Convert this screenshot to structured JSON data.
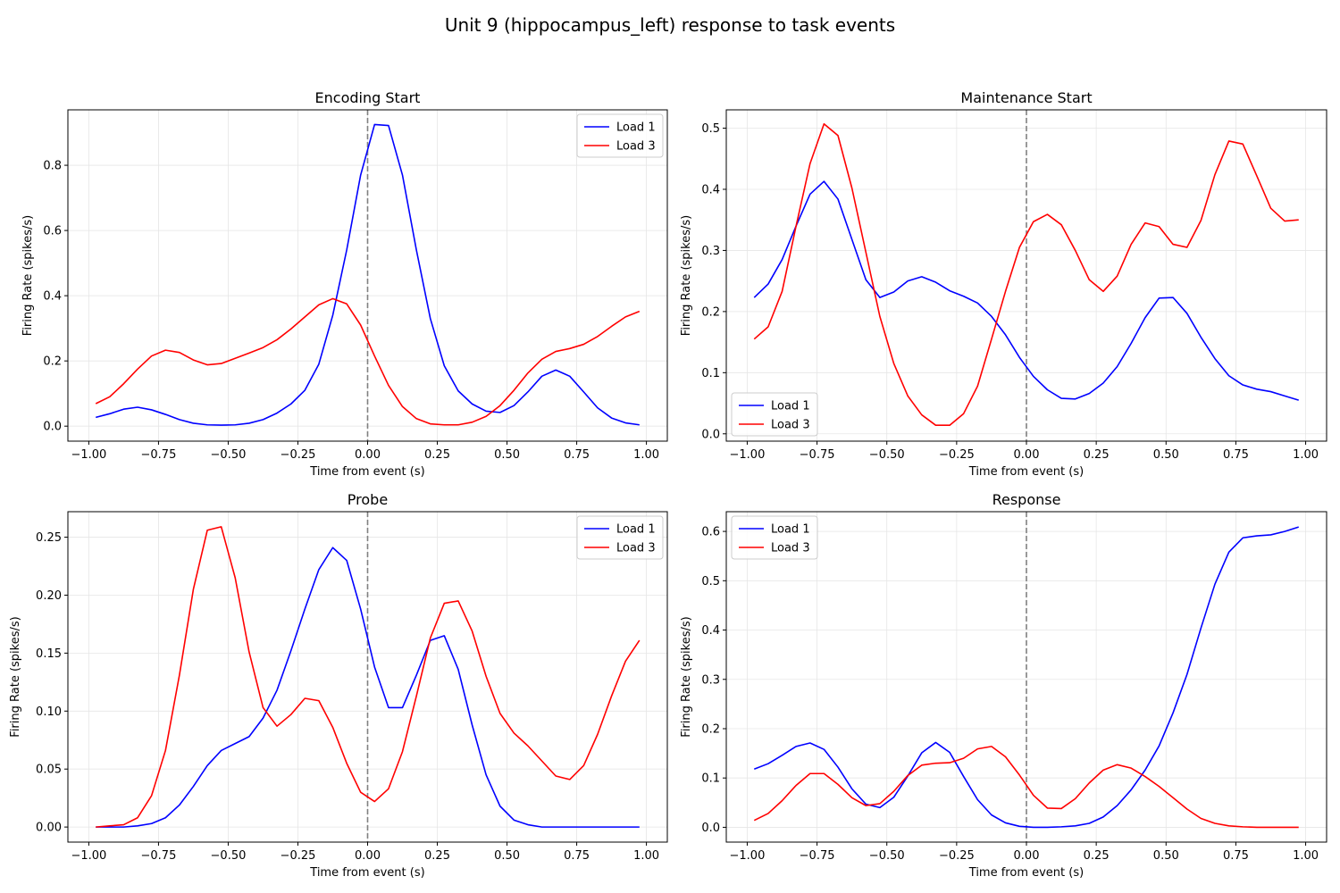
{
  "figure": {
    "title": "Unit 9 (hippocampus_left) response to task events"
  },
  "colors": {
    "load1": "#0000ff",
    "load3": "#ff0000",
    "event_line": "#808080",
    "grid": "#e6e6e6"
  },
  "chart_data": [
    {
      "type": "line",
      "title": "Encoding Start",
      "xlabel": "Time from event (s)",
      "ylabel": "Firing Rate (spikes/s)",
      "xlim": [
        -1.075,
        1.075
      ],
      "ylim": [
        -0.046,
        0.97
      ],
      "xticks": [
        -1.0,
        -0.75,
        -0.5,
        -0.25,
        0.0,
        0.25,
        0.5,
        0.75,
        1.0
      ],
      "xticklabels": [
        "−1.00",
        "−0.75",
        "−0.50",
        "−0.25",
        "0.00",
        "0.25",
        "0.50",
        "0.75",
        "1.00"
      ],
      "yticks": [
        0.0,
        0.2,
        0.4,
        0.6,
        0.8
      ],
      "yticklabels": [
        "0.0",
        "0.2",
        "0.4",
        "0.6",
        "0.8"
      ],
      "event_line_x": 0.0,
      "grid": true,
      "legend_position": "top-right",
      "x": [
        -0.975,
        -0.925,
        -0.875,
        -0.825,
        -0.775,
        -0.725,
        -0.675,
        -0.625,
        -0.575,
        -0.525,
        -0.475,
        -0.425,
        -0.375,
        -0.325,
        -0.275,
        -0.225,
        -0.175,
        -0.125,
        -0.075,
        -0.025,
        0.025,
        0.075,
        0.125,
        0.175,
        0.225,
        0.275,
        0.325,
        0.375,
        0.425,
        0.475,
        0.525,
        0.575,
        0.625,
        0.675,
        0.725,
        0.775,
        0.825,
        0.875,
        0.925,
        0.975
      ],
      "series": [
        {
          "name": "Load 1",
          "color": "#0000ff",
          "values": [
            0.027,
            0.038,
            0.052,
            0.058,
            0.05,
            0.036,
            0.02,
            0.009,
            0.004,
            0.003,
            0.004,
            0.009,
            0.02,
            0.04,
            0.068,
            0.11,
            0.19,
            0.34,
            0.54,
            0.77,
            0.925,
            0.922,
            0.77,
            0.54,
            0.33,
            0.185,
            0.108,
            0.068,
            0.046,
            0.042,
            0.063,
            0.105,
            0.153,
            0.172,
            0.153,
            0.105,
            0.056,
            0.025,
            0.01,
            0.004
          ]
        },
        {
          "name": "Load 3",
          "color": "#ff0000",
          "values": [
            0.069,
            0.09,
            0.13,
            0.175,
            0.215,
            0.233,
            0.226,
            0.203,
            0.188,
            0.192,
            0.208,
            0.224,
            0.241,
            0.265,
            0.298,
            0.335,
            0.372,
            0.391,
            0.375,
            0.31,
            0.215,
            0.125,
            0.06,
            0.023,
            0.007,
            0.004,
            0.004,
            0.012,
            0.03,
            0.063,
            0.11,
            0.163,
            0.205,
            0.229,
            0.238,
            0.251,
            0.275,
            0.306,
            0.335,
            0.352
          ]
        }
      ]
    },
    {
      "type": "line",
      "title": "Maintenance Start",
      "xlabel": "Time from event (s)",
      "ylabel": "Firing Rate (spikes/s)",
      "xlim": [
        -1.075,
        1.075
      ],
      "ylim": [
        -0.012,
        0.53
      ],
      "xticks": [
        -1.0,
        -0.75,
        -0.5,
        -0.25,
        0.0,
        0.25,
        0.5,
        0.75,
        1.0
      ],
      "xticklabels": [
        "−1.00",
        "−0.75",
        "−0.50",
        "−0.25",
        "0.00",
        "0.25",
        "0.50",
        "0.75",
        "1.00"
      ],
      "yticks": [
        0.0,
        0.1,
        0.2,
        0.3,
        0.4,
        0.5
      ],
      "yticklabels": [
        "0.0",
        "0.1",
        "0.2",
        "0.3",
        "0.4",
        "0.5"
      ],
      "event_line_x": 0.0,
      "grid": true,
      "legend_position": "bottom-left",
      "x": [
        -0.975,
        -0.925,
        -0.875,
        -0.825,
        -0.775,
        -0.725,
        -0.675,
        -0.625,
        -0.575,
        -0.525,
        -0.475,
        -0.425,
        -0.375,
        -0.325,
        -0.275,
        -0.225,
        -0.175,
        -0.125,
        -0.075,
        -0.025,
        0.025,
        0.075,
        0.125,
        0.175,
        0.225,
        0.275,
        0.325,
        0.375,
        0.425,
        0.475,
        0.525,
        0.575,
        0.625,
        0.675,
        0.725,
        0.775,
        0.825,
        0.875,
        0.925,
        0.975
      ],
      "series": [
        {
          "name": "Load 1",
          "color": "#0000ff",
          "values": [
            0.223,
            0.245,
            0.285,
            0.34,
            0.392,
            0.413,
            0.384,
            0.318,
            0.252,
            0.223,
            0.232,
            0.25,
            0.257,
            0.248,
            0.234,
            0.225,
            0.214,
            0.192,
            0.162,
            0.125,
            0.094,
            0.072,
            0.058,
            0.057,
            0.066,
            0.083,
            0.11,
            0.148,
            0.19,
            0.222,
            0.223,
            0.197,
            0.158,
            0.123,
            0.095,
            0.08,
            0.073,
            0.069,
            0.062,
            0.055
          ]
        },
        {
          "name": "Load 3",
          "color": "#ff0000",
          "values": [
            0.155,
            0.175,
            0.233,
            0.34,
            0.442,
            0.507,
            0.488,
            0.402,
            0.297,
            0.192,
            0.115,
            0.062,
            0.031,
            0.014,
            0.014,
            0.033,
            0.078,
            0.155,
            0.233,
            0.305,
            0.347,
            0.359,
            0.342,
            0.3,
            0.252,
            0.233,
            0.258,
            0.31,
            0.345,
            0.339,
            0.31,
            0.305,
            0.349,
            0.424,
            0.479,
            0.474,
            0.422,
            0.369,
            0.348,
            0.35
          ]
        }
      ]
    },
    {
      "type": "line",
      "title": "Probe",
      "xlabel": "Time from event (s)",
      "ylabel": "Firing Rate (spikes/s)",
      "xlim": [
        -1.075,
        1.075
      ],
      "ylim": [
        -0.013,
        0.272
      ],
      "xticks": [
        -1.0,
        -0.75,
        -0.5,
        -0.25,
        0.0,
        0.25,
        0.5,
        0.75,
        1.0
      ],
      "xticklabels": [
        "−1.00",
        "−0.75",
        "−0.50",
        "−0.25",
        "0.00",
        "0.25",
        "0.50",
        "0.75",
        "1.00"
      ],
      "yticks": [
        0.0,
        0.05,
        0.1,
        0.15,
        0.2,
        0.25
      ],
      "yticklabels": [
        "0.00",
        "0.05",
        "0.10",
        "0.15",
        "0.20",
        "0.25"
      ],
      "event_line_x": 0.0,
      "grid": true,
      "legend_position": "top-right",
      "x": [
        -0.975,
        -0.925,
        -0.875,
        -0.825,
        -0.775,
        -0.725,
        -0.675,
        -0.625,
        -0.575,
        -0.525,
        -0.475,
        -0.425,
        -0.375,
        -0.325,
        -0.275,
        -0.225,
        -0.175,
        -0.125,
        -0.075,
        -0.025,
        0.025,
        0.075,
        0.125,
        0.175,
        0.225,
        0.275,
        0.325,
        0.375,
        0.425,
        0.475,
        0.525,
        0.575,
        0.625,
        0.675,
        0.725,
        0.775,
        0.825,
        0.875,
        0.925,
        0.975
      ],
      "series": [
        {
          "name": "Load 1",
          "color": "#0000ff",
          "values": [
            0.0,
            0.0,
            0.0,
            0.001,
            0.003,
            0.008,
            0.019,
            0.035,
            0.053,
            0.066,
            0.072,
            0.078,
            0.094,
            0.118,
            0.152,
            0.188,
            0.222,
            0.241,
            0.23,
            0.188,
            0.138,
            0.103,
            0.103,
            0.131,
            0.161,
            0.165,
            0.136,
            0.088,
            0.045,
            0.018,
            0.006,
            0.002,
            0.0,
            0.0,
            0.0,
            0.0,
            0.0,
            0.0,
            0.0,
            0.0
          ]
        },
        {
          "name": "Load 3",
          "color": "#ff0000",
          "values": [
            0.0,
            0.001,
            0.002,
            0.008,
            0.027,
            0.066,
            0.131,
            0.205,
            0.256,
            0.259,
            0.215,
            0.151,
            0.103,
            0.087,
            0.097,
            0.111,
            0.109,
            0.086,
            0.055,
            0.03,
            0.022,
            0.033,
            0.065,
            0.113,
            0.163,
            0.193,
            0.195,
            0.169,
            0.13,
            0.098,
            0.081,
            0.07,
            0.057,
            0.044,
            0.041,
            0.053,
            0.08,
            0.113,
            0.143,
            0.161
          ]
        }
      ]
    },
    {
      "type": "line",
      "title": "Response",
      "xlabel": "Time from event (s)",
      "ylabel": "Firing Rate (spikes/s)",
      "xlim": [
        -1.075,
        1.075
      ],
      "ylim": [
        -0.03,
        0.64
      ],
      "xticks": [
        -1.0,
        -0.75,
        -0.5,
        -0.25,
        0.0,
        0.25,
        0.5,
        0.75,
        1.0
      ],
      "xticklabels": [
        "−1.00",
        "−0.75",
        "−0.50",
        "−0.25",
        "0.00",
        "0.25",
        "0.50",
        "0.75",
        "1.00"
      ],
      "yticks": [
        0.0,
        0.1,
        0.2,
        0.3,
        0.4,
        0.5,
        0.6
      ],
      "yticklabels": [
        "0.0",
        "0.1",
        "0.2",
        "0.3",
        "0.4",
        "0.5",
        "0.6"
      ],
      "event_line_x": 0.0,
      "grid": true,
      "legend_position": "top-left",
      "x": [
        -0.975,
        -0.925,
        -0.875,
        -0.825,
        -0.775,
        -0.725,
        -0.675,
        -0.625,
        -0.575,
        -0.525,
        -0.475,
        -0.425,
        -0.375,
        -0.325,
        -0.275,
        -0.225,
        -0.175,
        -0.125,
        -0.075,
        -0.025,
        0.025,
        0.075,
        0.125,
        0.175,
        0.225,
        0.275,
        0.325,
        0.375,
        0.425,
        0.475,
        0.525,
        0.575,
        0.625,
        0.675,
        0.725,
        0.775,
        0.825,
        0.875,
        0.925,
        0.975
      ],
      "series": [
        {
          "name": "Load 1",
          "color": "#0000ff",
          "values": [
            0.118,
            0.129,
            0.146,
            0.164,
            0.171,
            0.158,
            0.122,
            0.078,
            0.047,
            0.04,
            0.061,
            0.104,
            0.151,
            0.172,
            0.152,
            0.103,
            0.056,
            0.025,
            0.009,
            0.002,
            0.0,
            0.0,
            0.001,
            0.003,
            0.008,
            0.021,
            0.044,
            0.076,
            0.116,
            0.165,
            0.232,
            0.31,
            0.404,
            0.493,
            0.558,
            0.587,
            0.591,
            0.593,
            0.6,
            0.609
          ]
        },
        {
          "name": "Load 3",
          "color": "#ff0000",
          "values": [
            0.014,
            0.028,
            0.054,
            0.085,
            0.109,
            0.109,
            0.087,
            0.06,
            0.044,
            0.048,
            0.073,
            0.105,
            0.126,
            0.13,
            0.131,
            0.14,
            0.159,
            0.164,
            0.143,
            0.106,
            0.065,
            0.039,
            0.038,
            0.058,
            0.09,
            0.116,
            0.127,
            0.12,
            0.103,
            0.083,
            0.06,
            0.037,
            0.018,
            0.008,
            0.003,
            0.001,
            0.0,
            0.0,
            0.0,
            0.0
          ]
        }
      ]
    }
  ]
}
